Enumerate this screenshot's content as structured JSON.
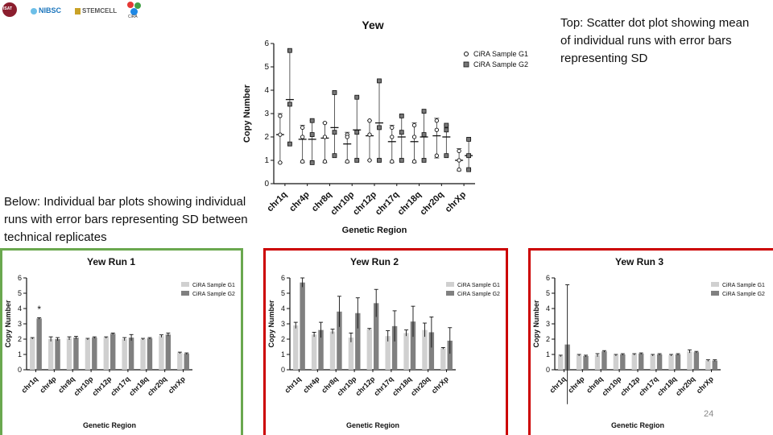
{
  "logos": {
    "first": "ISAT",
    "second": "NIBSC",
    "third": "STEMCELL",
    "fourth": "CiRA"
  },
  "captions": {
    "top": "Top: Scatter dot plot showing mean of individual runs with error bars representing SD",
    "below": "Below: Individual bar plots showing individual runs with error bars representing SD between technical replicates"
  },
  "page_number": "24",
  "colors": {
    "green_frame": "#6aa84f",
    "red_frame": "#cc0000",
    "g1": "#d0d0d0",
    "g2": "#808080"
  },
  "chart_data": [
    {
      "id": "yew",
      "type": "scatter",
      "title": "Yew",
      "xlabel": "Genetic Region",
      "ylabel": "Copy Number",
      "ylim": [
        0,
        6
      ],
      "yticks": [
        0,
        1,
        2,
        3,
        4,
        5,
        6
      ],
      "categories": [
        "chr1q",
        "chr4p",
        "chr8q",
        "chr10p",
        "chr12p",
        "chr17q",
        "chr18q",
        "chr20q",
        "chrXp"
      ],
      "legend": [
        "CiRA Sample G1",
        "CiRA Sample G2"
      ],
      "series": [
        {
          "name": "CiRA Sample G1",
          "points": [
            [
              2.9,
              2.1,
              0.9
            ],
            [
              2.4,
              2.0,
              0.95
            ],
            [
              2.6,
              2.0,
              0.95
            ],
            [
              2.1,
              2.0,
              0.95
            ],
            [
              2.7,
              2.1,
              1.0
            ],
            [
              2.4,
              2.0,
              0.95
            ],
            [
              2.5,
              2.0,
              0.95
            ],
            [
              2.7,
              2.3,
              1.2
            ],
            [
              1.4,
              1.0,
              0.6
            ]
          ],
          "mean": [
            2.1,
            1.9,
            1.95,
            1.7,
            2.05,
            1.8,
            1.8,
            2.05,
            1.0
          ],
          "sd_low": [
            0.9,
            0.9,
            0.9,
            0.9,
            1.0,
            0.9,
            0.9,
            1.1,
            0.55
          ],
          "sd_high": [
            3.0,
            2.5,
            2.6,
            2.2,
            2.7,
            2.5,
            2.6,
            2.8,
            1.5
          ]
        },
        {
          "name": "CiRA Sample G2",
          "points": [
            [
              5.7,
              3.4,
              1.7
            ],
            [
              2.7,
              2.1,
              0.9
            ],
            [
              3.9,
              2.2,
              1.2
            ],
            [
              3.7,
              2.2,
              1.0
            ],
            [
              4.4,
              2.4,
              1.0
            ],
            [
              2.9,
              2.2,
              1.0
            ],
            [
              3.1,
              2.1,
              1.0
            ],
            [
              2.5,
              2.3,
              1.2
            ],
            [
              1.9,
              1.2,
              0.6
            ]
          ],
          "mean": [
            3.6,
            1.9,
            2.4,
            2.3,
            2.6,
            2.0,
            2.0,
            2.0,
            1.2
          ],
          "sd_low": [
            1.7,
            0.9,
            1.2,
            1.0,
            1.0,
            1.0,
            1.0,
            1.2,
            0.6
          ],
          "sd_high": [
            5.7,
            2.7,
            3.9,
            3.7,
            4.4,
            2.9,
            3.1,
            2.5,
            1.9
          ]
        }
      ]
    },
    {
      "id": "run1",
      "type": "bar",
      "title": "Yew Run 1",
      "xlabel": "Genetic Region",
      "ylabel": "Copy Number",
      "ylim": [
        0,
        6
      ],
      "yticks": [
        0,
        1,
        2,
        3,
        4,
        5,
        6
      ],
      "categories": [
        "chr1q",
        "chr4p",
        "chr8q",
        "chr10p",
        "chr12p",
        "chr17q",
        "chr18q",
        "chr20q",
        "chrXp"
      ],
      "legend": [
        "CiRA Sample G1",
        "CiRA Sample G2"
      ],
      "annotation": {
        "text": "*",
        "category_index": 0,
        "y": 3.75
      },
      "series": [
        {
          "name": "CiRA Sample G1",
          "values": [
            2.05,
            2.0,
            2.05,
            2.0,
            2.1,
            2.0,
            2.0,
            2.2,
            1.1
          ],
          "errors": [
            0.05,
            0.15,
            0.1,
            0.05,
            0.05,
            0.1,
            0.05,
            0.08,
            0.05
          ]
        },
        {
          "name": "CiRA Sample G2",
          "values": [
            3.35,
            2.0,
            2.1,
            2.1,
            2.35,
            2.1,
            2.05,
            2.3,
            1.05
          ],
          "errors": [
            0.05,
            0.1,
            0.08,
            0.05,
            0.05,
            0.2,
            0.05,
            0.1,
            0.05
          ]
        }
      ]
    },
    {
      "id": "run2",
      "type": "bar",
      "title": "Yew Run 2",
      "xlabel": "Genetic Region",
      "ylabel": "Copy Number",
      "ylim": [
        0,
        6
      ],
      "yticks": [
        0,
        1,
        2,
        3,
        4,
        5,
        6
      ],
      "categories": [
        "chr1q",
        "chr4p",
        "chr8q",
        "chr10p",
        "chr12p",
        "chr17q",
        "chr18q",
        "chr20q",
        "chrXp"
      ],
      "legend": [
        "CiRA Sample G1",
        "CiRA Sample G2"
      ],
      "series": [
        {
          "name": "CiRA Sample G1",
          "values": [
            2.9,
            2.3,
            2.5,
            2.1,
            2.65,
            2.2,
            2.4,
            2.6,
            1.4
          ],
          "errors": [
            0.2,
            0.15,
            0.15,
            0.3,
            0.05,
            0.35,
            0.2,
            0.45,
            0.05
          ]
        },
        {
          "name": "CiRA Sample G2",
          "values": [
            5.7,
            2.6,
            3.8,
            3.7,
            4.35,
            2.85,
            3.15,
            2.45,
            1.9
          ],
          "errors": [
            0.3,
            0.5,
            1.0,
            1.0,
            0.9,
            1.0,
            1.0,
            1.0,
            0.85
          ]
        }
      ]
    },
    {
      "id": "run3",
      "type": "bar",
      "title": "Yew Run 3",
      "xlabel": "Genetic Region",
      "ylabel": "Copy Number",
      "ylim": [
        0,
        6
      ],
      "yticks": [
        0,
        1,
        2,
        3,
        4,
        5,
        6
      ],
      "categories": [
        "chr1q",
        "chr4p",
        "chr8q",
        "chr10p",
        "chr12p",
        "chr17q",
        "chr18q",
        "chr20q",
        "chrXp"
      ],
      "legend": [
        "CiRA Sample G1",
        "CiRA Sample G2"
      ],
      "series": [
        {
          "name": "CiRA Sample G1",
          "values": [
            0.9,
            0.95,
            0.95,
            0.95,
            1.0,
            0.95,
            0.95,
            1.2,
            0.6
          ],
          "errors": [
            0.05,
            0.05,
            0.1,
            0.05,
            0.05,
            0.05,
            0.05,
            0.1,
            0.05
          ]
        },
        {
          "name": "CiRA Sample G2",
          "values": [
            1.65,
            0.9,
            1.2,
            1.0,
            1.05,
            1.0,
            1.0,
            1.15,
            0.6
          ],
          "errors": [
            3.9,
            0.05,
            0.05,
            0.05,
            0.05,
            0.05,
            0.05,
            0.05,
            0.05
          ]
        }
      ]
    }
  ]
}
